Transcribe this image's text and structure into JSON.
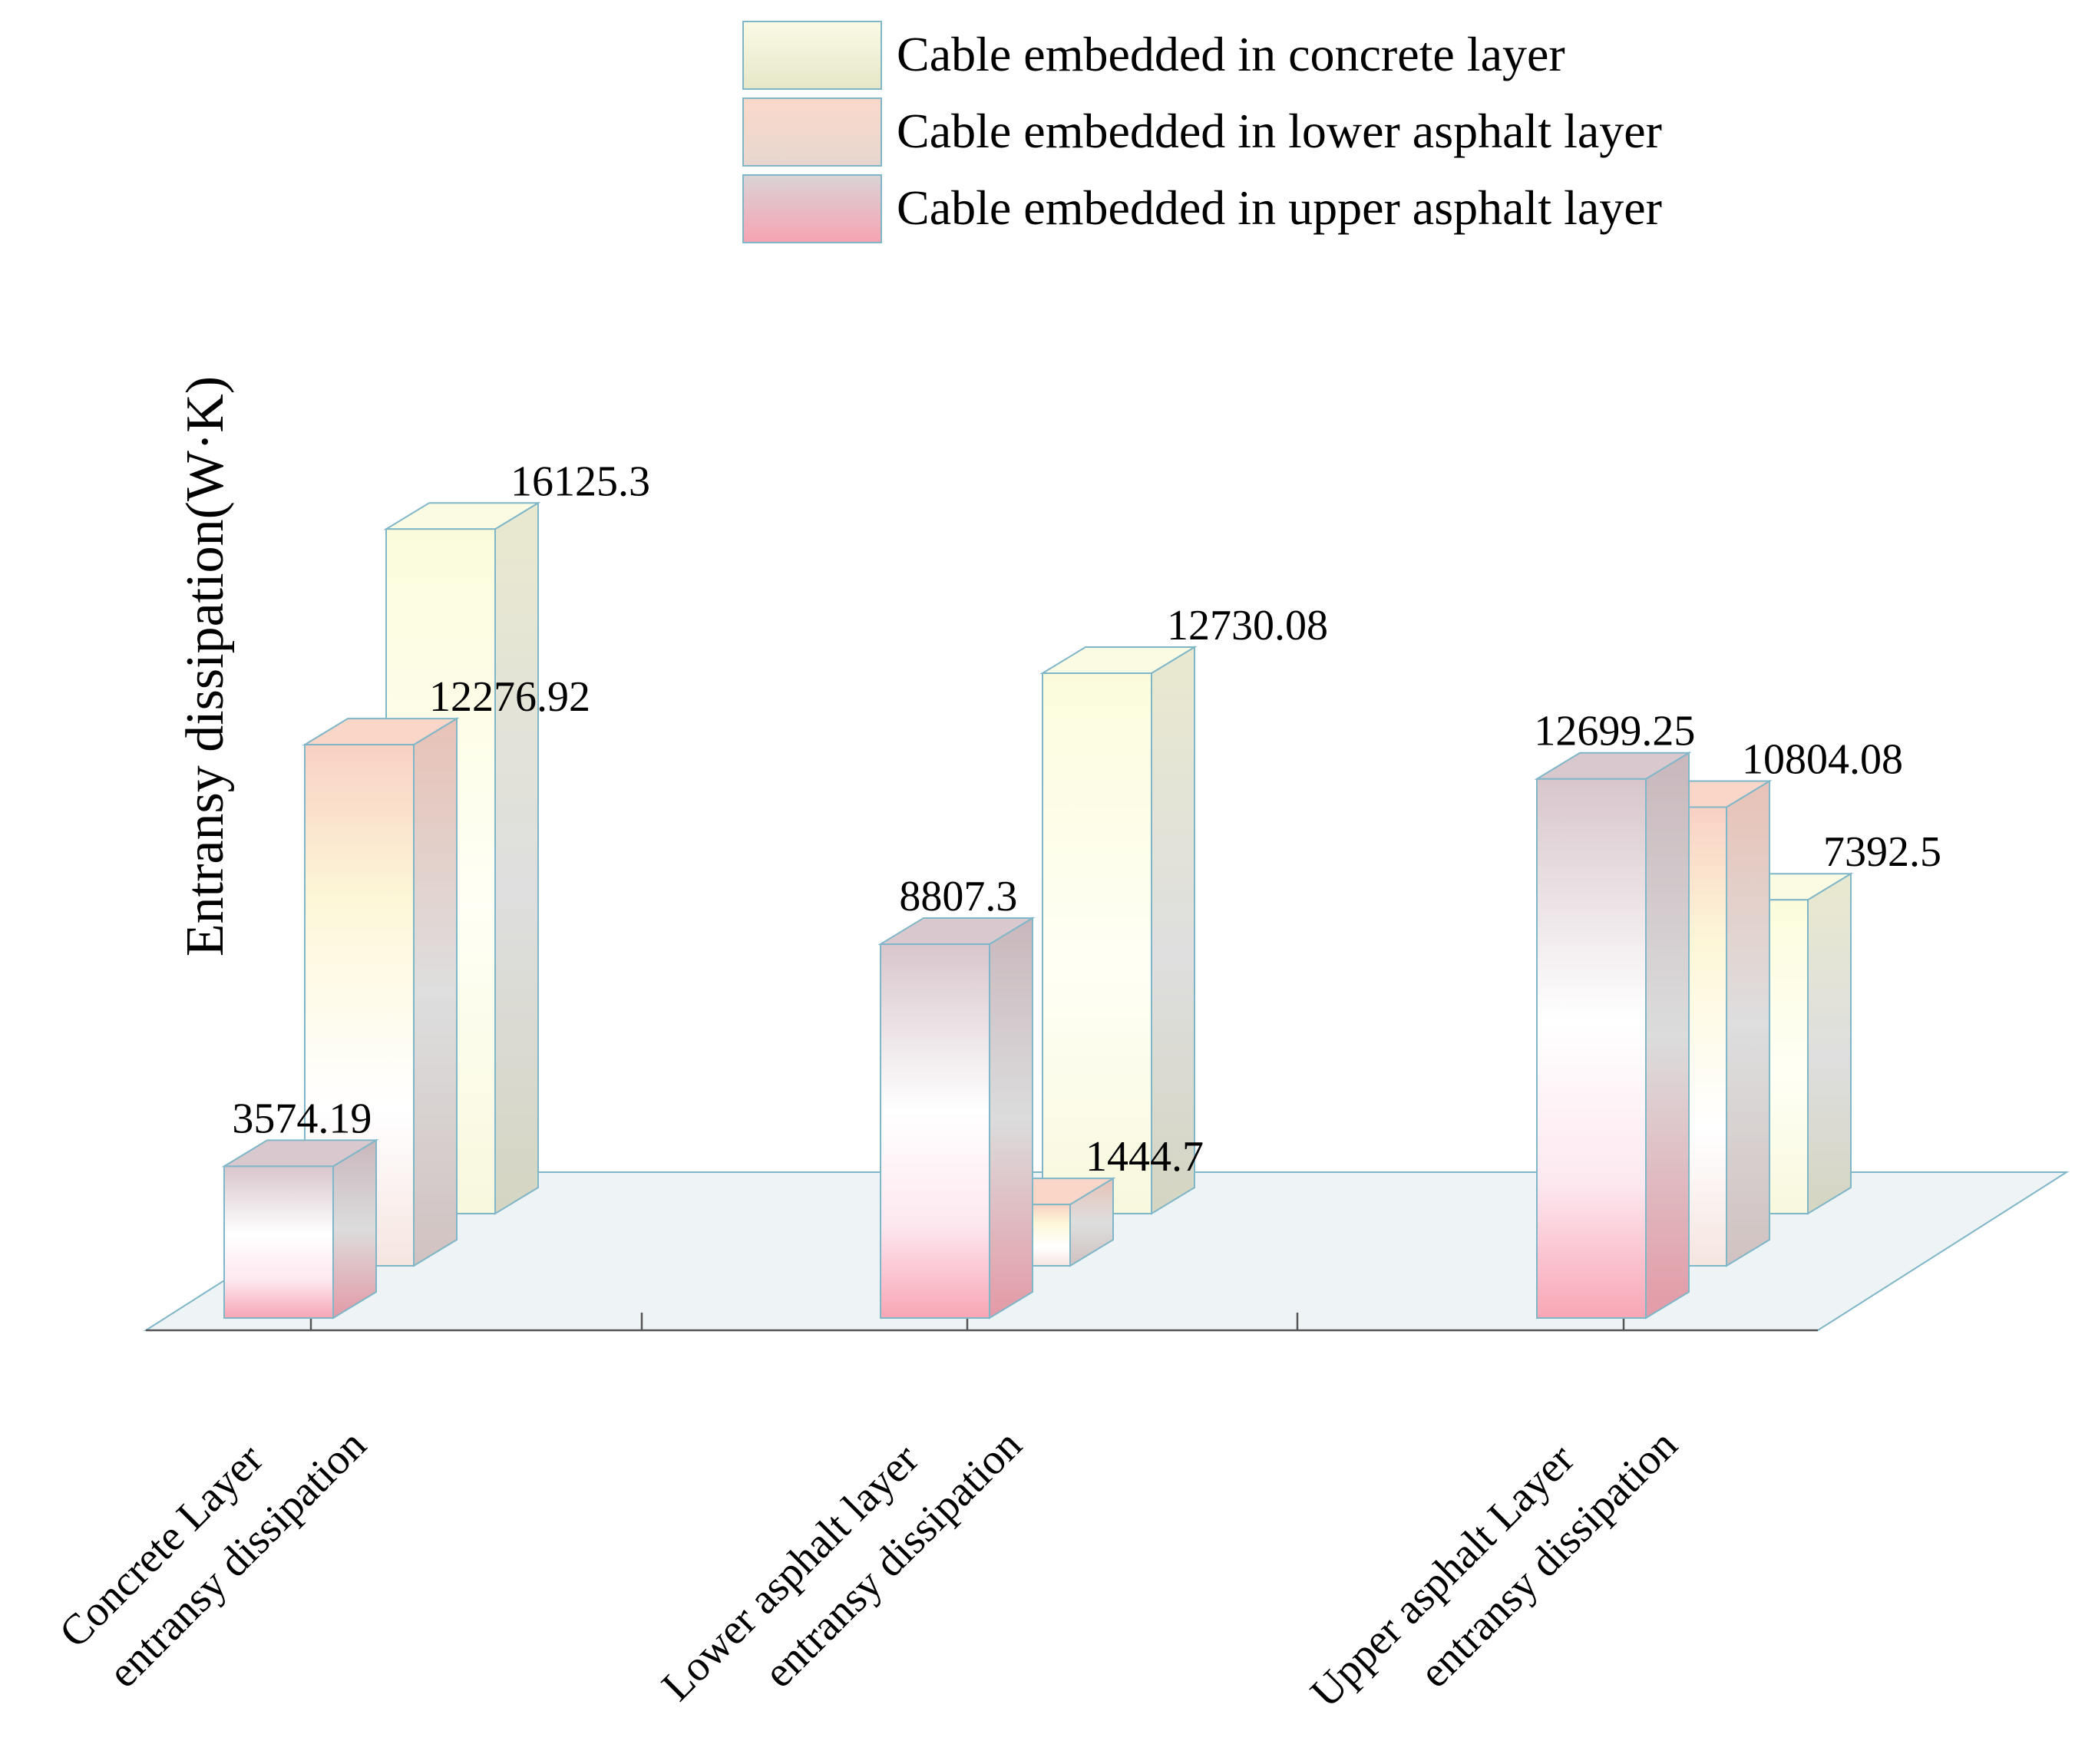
{
  "chart_data": {
    "type": "bar",
    "style": "3d-grouped",
    "title": "",
    "xlabel": "",
    "ylabel": "Entransy dissipation(W·K)",
    "grid": false,
    "legend_position": "top-right",
    "categories": [
      "Concrete Layer entransy dissipation",
      "Lower asphalt layer entransy dissipation",
      "Upper asphalt Layer entransy dissipation"
    ],
    "category_lines": [
      [
        "Concrete Layer",
        "entransy dissipation"
      ],
      [
        "Lower asphalt layer",
        "entransy dissipation"
      ],
      [
        "Upper asphalt Layer",
        "entransy dissipation"
      ]
    ],
    "series": [
      {
        "name": "Cable embedded in concrete layer",
        "values": [
          16125.3,
          12730.08,
          7392.5
        ],
        "labels": [
          "16125.3",
          "12730.08",
          "7392.5"
        ]
      },
      {
        "name": "Cable embedded in lower asphalt layer",
        "values": [
          12276.92,
          1444.7,
          10804.08
        ],
        "labels": [
          "12276.92",
          "1444.7",
          "10804.08"
        ]
      },
      {
        "name": "Cable embedded in upper asphalt layer",
        "values": [
          3574.19,
          8807.3,
          12699.25
        ],
        "labels": [
          "3574.19",
          "8807.3",
          "12699.25"
        ]
      }
    ],
    "colors": {
      "concrete_top": "#fbfbdc",
      "concrete_mid": "#fffff2",
      "concrete_bottom": "#fbfbe4",
      "lower_top": "#f9d3c3",
      "lower_mid": "#fffbe8",
      "upper_top": "#d6c3c9",
      "upper_mid": "#ffffff",
      "upper_bottom": "#f7a3b2",
      "floor": "#eef3f6",
      "outline": "#7fb6c8",
      "side": "#d7d7d7"
    }
  }
}
